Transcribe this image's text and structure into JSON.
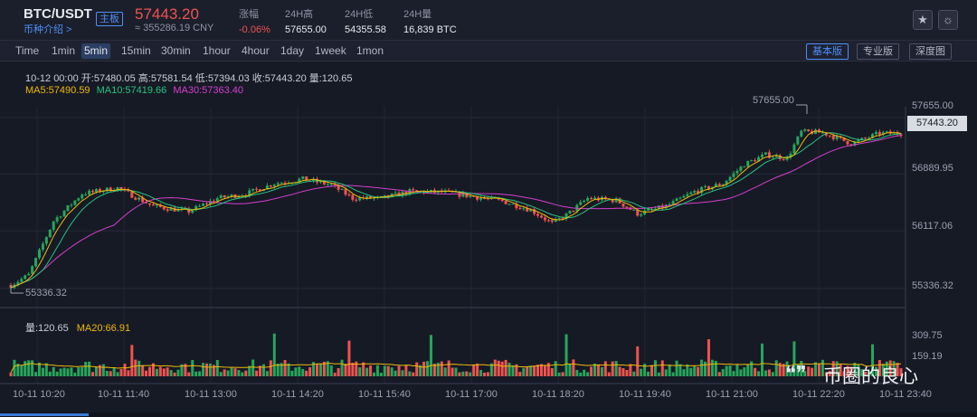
{
  "header": {
    "pair": "BTC/USDT",
    "market_tag": "主板",
    "intro_link": "币种介绍 >",
    "last_price": "57443.20",
    "cny_price": "≈ 355286.19 CNY",
    "stats": [
      {
        "label": "涨幅",
        "value": "-0.06%"
      },
      {
        "label": "24H高",
        "value": "57655.00"
      },
      {
        "label": "24H低",
        "value": "54355.58"
      },
      {
        "label": "24H量",
        "value": "16,839 BTC"
      }
    ],
    "favorite_icon": "star-icon",
    "theme_icon": "sun-icon"
  },
  "toolbar": {
    "intervals": [
      "Time",
      "1min",
      "5min",
      "15min",
      "30min",
      "1hour",
      "4hour",
      "1day",
      "1week",
      "1mon"
    ],
    "active_interval": "5min",
    "versions": [
      "基本版",
      "专业版",
      "深度图"
    ],
    "active_version": "基本版"
  },
  "legend": {
    "ohlc": "10-12 00:00   开:57480.05  高:57581.54  低:57394.03  收:57443.20  量:120.65",
    "ma5": "MA5:57490.59",
    "ma10": "MA10:57419.66",
    "ma30": "MA30:57363.40",
    "volume": "量:120.65",
    "volume_ma20": "MA20:66.91"
  },
  "price_axis": [
    "57655.00",
    "56889.95",
    "56117.06",
    "55336.32"
  ],
  "current_price_tag": "57443.20",
  "high_marker": "57655.00",
  "low_marker": "55336.32",
  "volume_axis": [
    "309.75",
    "159.19"
  ],
  "time_axis": [
    "10-11 10:20",
    "10-11 11:40",
    "10-11 13:00",
    "10-11 14:20",
    "10-11 15:40",
    "10-11 17:00",
    "10-11 18:20",
    "10-11 19:40",
    "10-11 21:00",
    "10-11 22:20",
    "10-11 23:40"
  ],
  "watermark": "币圈的良心",
  "colors": {
    "up": "#26a65b",
    "down": "#ef5350",
    "ma5": "#f0b90b",
    "ma10": "#26c281",
    "ma30": "#d63fd0",
    "accent": "#4f8ef7"
  },
  "chart_data": {
    "type": "candlestick",
    "ylim": [
      55200,
      57800
    ],
    "volume_ylim": [
      0,
      330
    ],
    "anchors": [
      [
        0,
        55380
      ],
      [
        5,
        55520
      ],
      [
        12,
        56250
      ],
      [
        20,
        56620
      ],
      [
        30,
        56700
      ],
      [
        40,
        56450
      ],
      [
        50,
        56380
      ],
      [
        58,
        56560
      ],
      [
        66,
        56620
      ],
      [
        74,
        56760
      ],
      [
        82,
        56820
      ],
      [
        90,
        56740
      ],
      [
        96,
        56560
      ],
      [
        104,
        56560
      ],
      [
        112,
        56650
      ],
      [
        122,
        56640
      ],
      [
        130,
        56580
      ],
      [
        138,
        56520
      ],
      [
        146,
        56400
      ],
      [
        152,
        56220
      ],
      [
        156,
        56330
      ],
      [
        162,
        56560
      ],
      [
        170,
        56530
      ],
      [
        176,
        56350
      ],
      [
        184,
        56450
      ],
      [
        192,
        56650
      ],
      [
        200,
        56760
      ],
      [
        206,
        57020
      ],
      [
        212,
        57150
      ],
      [
        218,
        57100
      ],
      [
        222,
        57460
      ],
      [
        228,
        57450
      ],
      [
        236,
        57300
      ],
      [
        244,
        57440
      ],
      [
        250,
        57440
      ]
    ]
  }
}
